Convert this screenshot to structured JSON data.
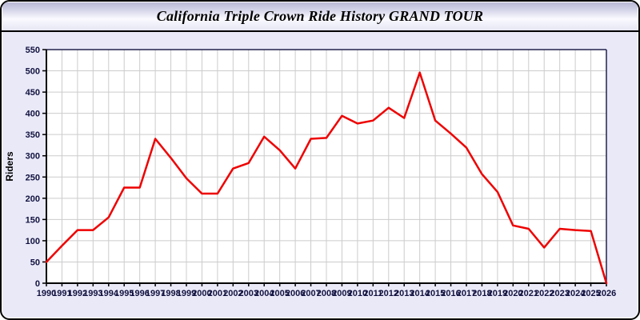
{
  "window": {
    "title": "California Triple Crown Ride History GRAND TOUR"
  },
  "chart_data": {
    "type": "line",
    "title": "California Triple Crown Ride History GRAND TOUR",
    "xlabel": "",
    "ylabel": "Riders",
    "x": [
      1990,
      1991,
      1992,
      1993,
      1994,
      1995,
      1996,
      1997,
      1998,
      1999,
      2000,
      2001,
      2002,
      2003,
      2004,
      2005,
      2006,
      2007,
      2008,
      2009,
      2010,
      2011,
      2012,
      2013,
      2014,
      2015,
      2016,
      2017,
      2018,
      2019,
      2020,
      2021,
      2022,
      2023,
      2024,
      2025,
      2026
    ],
    "series": [
      {
        "name": "Riders",
        "values": [
          50,
          88,
          125,
          125,
          155,
          225,
          225,
          340,
          295,
          247,
          211,
          211,
          270,
          283,
          345,
          313,
          270,
          340,
          342,
          394,
          376,
          383,
          413,
          389,
          496,
          383,
          352,
          319,
          257,
          215,
          136,
          128,
          84,
          128,
          125,
          123,
          0
        ]
      }
    ],
    "ylim": [
      0,
      550
    ],
    "yticks": [
      0,
      50,
      100,
      150,
      200,
      250,
      300,
      350,
      400,
      450,
      500,
      550
    ],
    "grid": true,
    "legend": false,
    "line_color": "#ee0000",
    "colors": {
      "plot_background": "#ffffff",
      "grid": "#cccccc",
      "frame": "#22224e",
      "axis": "#000000",
      "window_background": "#e9e9f8",
      "tick_label": "#121240"
    }
  }
}
